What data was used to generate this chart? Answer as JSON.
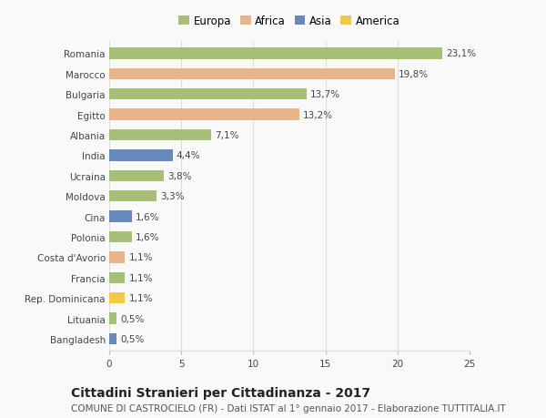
{
  "countries": [
    "Romania",
    "Marocco",
    "Bulgaria",
    "Egitto",
    "Albania",
    "India",
    "Ucraina",
    "Moldova",
    "Cina",
    "Polonia",
    "Costa d'Avorio",
    "Francia",
    "Rep. Dominicana",
    "Lituania",
    "Bangladesh"
  ],
  "values": [
    23.1,
    19.8,
    13.7,
    13.2,
    7.1,
    4.4,
    3.8,
    3.3,
    1.6,
    1.6,
    1.1,
    1.1,
    1.1,
    0.5,
    0.5
  ],
  "labels": [
    "23,1%",
    "19,8%",
    "13,7%",
    "13,2%",
    "7,1%",
    "4,4%",
    "3,8%",
    "3,3%",
    "1,6%",
    "1,6%",
    "1,1%",
    "1,1%",
    "1,1%",
    "0,5%",
    "0,5%"
  ],
  "continents": [
    "Europa",
    "Africa",
    "Europa",
    "Africa",
    "Europa",
    "Asia",
    "Europa",
    "Europa",
    "Asia",
    "Europa",
    "Africa",
    "Europa",
    "America",
    "Europa",
    "Asia"
  ],
  "continent_colors": {
    "Europa": "#a8bf78",
    "Africa": "#e8b48a",
    "Asia": "#6688bb",
    "America": "#f0c84a"
  },
  "legend_order": [
    "Europa",
    "Africa",
    "Asia",
    "America"
  ],
  "title": "Cittadini Stranieri per Cittadinanza - 2017",
  "subtitle": "COMUNE DI CASTROCIELO (FR) - Dati ISTAT al 1° gennaio 2017 - Elaborazione TUTTITALIA.IT",
  "xlim": [
    0,
    25
  ],
  "xticks": [
    0,
    5,
    10,
    15,
    20,
    25
  ],
  "background_color": "#f9f9f9",
  "grid_color": "#dddddd",
  "bar_height": 0.55,
  "title_fontsize": 10,
  "subtitle_fontsize": 7.5,
  "label_fontsize": 7.5,
  "tick_fontsize": 7.5,
  "legend_fontsize": 8.5
}
